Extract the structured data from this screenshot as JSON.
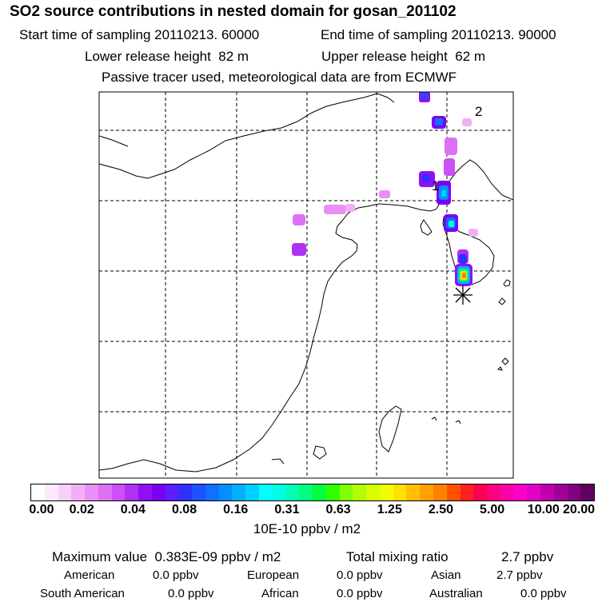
{
  "header": {
    "title": "SO2 source contributions in nested domain for gosan_201102",
    "start_label": "Start time of sampling",
    "start_value": "20110213. 60000",
    "end_label": "End time of sampling",
    "end_value": "20110213. 90000",
    "lower_label": "Lower release height",
    "lower_value": "82 m",
    "upper_label": "Upper release height",
    "upper_value": "62 m",
    "note": "Passive tracer used, meteorological data are from ECMWF"
  },
  "map": {
    "markers": [
      {
        "label": "1",
        "lon": 126.1,
        "lat": 37.2
      },
      {
        "label": "2",
        "lon": 130.6,
        "lat": 41.2
      }
    ],
    "receptor": {
      "name": "gosan",
      "symbol": "asterisk"
    }
  },
  "colorbar": {
    "tick_labels": [
      "0.00",
      "0.02",
      "0.04",
      "0.08",
      "0.16",
      "0.31",
      "0.63",
      "1.25",
      "2.50",
      "5.00",
      "10.00",
      "20.00"
    ],
    "colors": [
      "#ffffff",
      "#fce8fc",
      "#f7d0f7",
      "#f0b0f5",
      "#e890f5",
      "#dd70f5",
      "#cc50f5",
      "#b030f5",
      "#9010f5",
      "#7a00f5",
      "#5c20ff",
      "#3030ff",
      "#2050ff",
      "#1070ff",
      "#0090ff",
      "#00b0ff",
      "#00d0ff",
      "#00ffff",
      "#00ffe0",
      "#00ffb0",
      "#00ff80",
      "#00ff40",
      "#30ff00",
      "#80ff00",
      "#b0ff00",
      "#d8ff00",
      "#f0ff00",
      "#ffe000",
      "#ffc000",
      "#ffa000",
      "#ff8000",
      "#ff5000",
      "#ff2020",
      "#ff0050",
      "#ff0080",
      "#ff00a8",
      "#ff00c8",
      "#e000c8",
      "#c000b0",
      "#a00098",
      "#800080",
      "#600060"
    ],
    "units": "10E-10 ppbv / m2"
  },
  "footer": {
    "max_label": "Maximum value",
    "max_value": "0.383E-09 ppbv / m2",
    "total_label": "Total mixing ratio",
    "total_value": "2.7 ppbv",
    "regions": [
      {
        "name": "American",
        "value": "0.0 ppbv"
      },
      {
        "name": "European",
        "value": "0.0 ppbv"
      },
      {
        "name": "Asian",
        "value": "2.7 ppbv"
      },
      {
        "name": "South American",
        "value": "0.0 ppbv"
      },
      {
        "name": "African",
        "value": "0.0 ppbv"
      },
      {
        "name": "Australian",
        "value": "0.0 ppbv"
      }
    ]
  }
}
